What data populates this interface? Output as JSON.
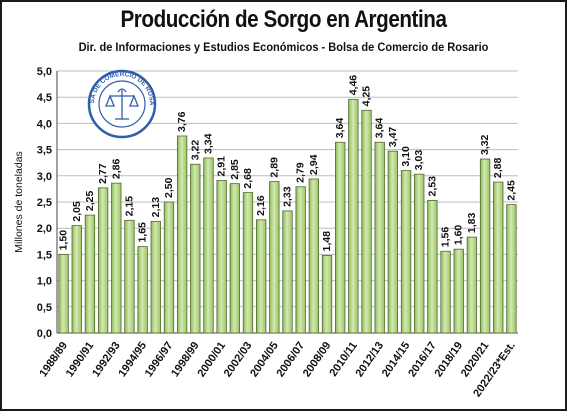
{
  "title": "Producción de Sorgo en Argentina",
  "subtitle": "Dir. de Informaciones y Estudios Económicos - Bolsa de Comercio de Rosario",
  "logo_text": "BOLSA DE COMERCIO DE ROSARIO",
  "colors": {
    "bar_fill": "#a9cf7a",
    "bar_fill_light": "#d2e9b1",
    "bar_stroke": "#4f6b2c",
    "grid": "#bdbdbd",
    "text": "#111111",
    "logo": "#2f5fa8"
  },
  "chart_data": {
    "type": "bar",
    "ylabel": "Millones de toneladas",
    "ylim": [
      0,
      5
    ],
    "yticks": [
      "0,0",
      "0,5",
      "1,0",
      "1,5",
      "2,0",
      "2,5",
      "3,0",
      "3,5",
      "4,0",
      "4,5",
      "5,0"
    ],
    "x_tick_labels": [
      "1988/89",
      "1990/91",
      "1992/93",
      "1994/95",
      "1996/97",
      "1998/99",
      "2000/01",
      "2002/03",
      "2004/05",
      "2006/07",
      "2008/09",
      "2010/11",
      "2012/13",
      "2014/15",
      "2016/17",
      "2018/19",
      "2020/21",
      "2022/23*Est."
    ],
    "values": [
      1.5,
      2.05,
      2.25,
      2.77,
      2.86,
      2.15,
      1.65,
      2.13,
      2.5,
      3.76,
      3.22,
      3.34,
      2.91,
      2.85,
      2.68,
      2.16,
      2.89,
      2.33,
      2.79,
      2.94,
      1.48,
      3.64,
      4.46,
      4.25,
      3.64,
      3.47,
      3.1,
      3.03,
      2.53,
      1.56,
      1.6,
      1.83,
      3.32,
      2.88,
      2.45
    ],
    "data_labels": [
      "1,50",
      "2,05",
      "2,25",
      "2,77",
      "2,86",
      "2,15",
      "1,65",
      "2,13",
      "2,50",
      "3,76",
      "3,22",
      "3,34",
      "2,91",
      "2,85",
      "2,68",
      "2,16",
      "2,89",
      "2,33",
      "2,79",
      "2,94",
      "1,48",
      "3,64",
      "4,46",
      "4,25",
      "3,64",
      "3,47",
      "3,10",
      "3,03",
      "2,53",
      "1,56",
      "1,60",
      "1,83",
      "3,32",
      "2,88",
      "2,45"
    ],
    "grid": true,
    "legend": false
  }
}
